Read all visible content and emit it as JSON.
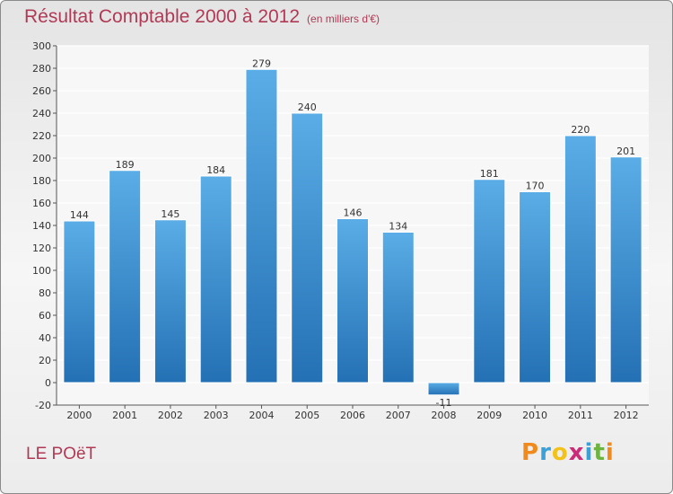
{
  "title": "Résultat Comptable 2000 à 2012",
  "subtitle": "(en milliers d'€)",
  "commune": "LE POëT",
  "logo": {
    "letters": [
      "P",
      "r",
      "o",
      "x",
      "i",
      "t",
      "i"
    ],
    "colors": [
      "#f08a1c",
      "#3aa0d8",
      "#f2c21a",
      "#cc2b7a",
      "#3aa0d8",
      "#6db33f",
      "#f08a1c"
    ]
  },
  "colors": {
    "bar_top": "#5aade6",
    "bar_bottom": "#2470b4",
    "title": "#b03a55"
  },
  "chart_data": {
    "type": "bar",
    "title": "Résultat Comptable 2000 à 2012",
    "ylabel": "(en milliers d'€)",
    "xlabel": "",
    "categories": [
      "2000",
      "2001",
      "2002",
      "2003",
      "2004",
      "2005",
      "2006",
      "2007",
      "2008",
      "2009",
      "2010",
      "2011",
      "2012"
    ],
    "values": [
      144,
      189,
      145,
      184,
      279,
      240,
      146,
      134,
      -11,
      181,
      170,
      220,
      201
    ],
    "ylim": [
      -20,
      300
    ],
    "yticks": [
      -20,
      0,
      20,
      40,
      60,
      80,
      100,
      120,
      140,
      160,
      180,
      200,
      220,
      240,
      260,
      280,
      300
    ],
    "grid": true
  }
}
